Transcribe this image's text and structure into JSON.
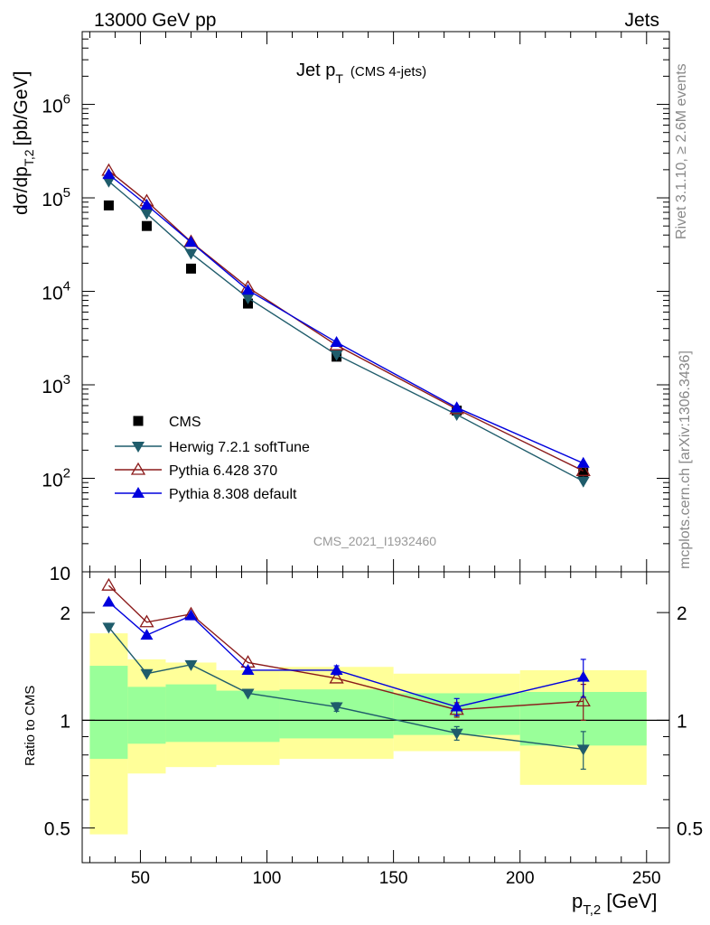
{
  "header": {
    "left": "13000 GeV pp",
    "right": "Jets"
  },
  "side_labels": {
    "rivet": "Rivet 3.1.10, ≥ 2.6M events",
    "mcplots": "mcplots.cern.ch [arXiv:1306.3436]"
  },
  "chart_data": [
    {
      "type": "scatter",
      "title": "Jet p_T (CMS 4-jets)",
      "title_main": "Jet p",
      "title_sub": "T",
      "title_extra": "(CMS 4-jets)",
      "ylabel_main": "dσ/dp",
      "ylabel_sub": "T,2",
      "ylabel_unit": "[pb/GeV]",
      "yscale": "log",
      "ylim": [
        10,
        6000000
      ],
      "xlim": [
        27,
        259
      ],
      "watermark": "CMS_2021_I1932460",
      "legend_position": "bottom-left",
      "y_tick_labels": [
        {
          "base": "10",
          "exp": "6",
          "value": 1000000
        },
        {
          "base": "10",
          "exp": "5",
          "value": 100000
        },
        {
          "base": "10",
          "exp": "4",
          "value": 10000
        },
        {
          "base": "10",
          "exp": "3",
          "value": 1000
        },
        {
          "base": "10",
          "exp": "2",
          "value": 100
        },
        {
          "base": "10",
          "exp": "",
          "value": 10
        }
      ],
      "series": [
        {
          "name": "CMS",
          "marker": "square",
          "color": "#000000",
          "x": [
            37.5,
            52.5,
            70,
            92.5,
            127.5,
            175,
            225
          ],
          "y": [
            83000,
            50000,
            17500,
            7400,
            2000,
            530,
            115
          ]
        },
        {
          "name": "Herwig 7.2.1 softTune",
          "marker": "triangle-down",
          "color": "#1f5c6b",
          "x": [
            37.5,
            52.5,
            70,
            92.5,
            127.5,
            175,
            225
          ],
          "y": [
            150000,
            68000,
            25500,
            8500,
            2100,
            480,
            93
          ],
          "yerr": [
            0,
            0,
            0,
            0,
            0,
            0,
            12
          ]
        },
        {
          "name": "Pythia 6.428 370",
          "marker": "triangle-up-open",
          "color": "#8b1a1a",
          "x": [
            37.5,
            52.5,
            70,
            92.5,
            127.5,
            175,
            225
          ],
          "y": [
            195000,
            92000,
            33800,
            11000,
            2650,
            550,
            120
          ]
        },
        {
          "name": "Pythia 8.308 default",
          "marker": "triangle-up",
          "color": "#0000dd",
          "x": [
            37.5,
            52.5,
            70,
            92.5,
            127.5,
            175,
            225
          ],
          "y": [
            178000,
            84000,
            33500,
            10300,
            2850,
            570,
            145
          ],
          "yerr": [
            0,
            0,
            0,
            0,
            0,
            0,
            14
          ]
        }
      ]
    },
    {
      "type": "line",
      "ylabel": "Ratio to CMS",
      "xlabel_main": "p",
      "xlabel_sub": "T,2",
      "xlabel_unit": "[GeV]",
      "yscale": "log",
      "ylim": [
        0.4,
        2.6
      ],
      "xlim": [
        27,
        259
      ],
      "x_ticks": [
        50,
        100,
        150,
        200,
        250
      ],
      "y_ticks": [
        0.5,
        1,
        2
      ],
      "y_tick_labels": [
        "0.5",
        "1",
        "2"
      ],
      "x_tick_labels": [
        "50",
        "100",
        "150",
        "200",
        "250"
      ],
      "bands": {
        "bin_edges": [
          30,
          45,
          60,
          80,
          105,
          150,
          200,
          250
        ],
        "yellow_low": [
          0.48,
          0.71,
          0.74,
          0.75,
          0.78,
          0.82,
          0.66
        ],
        "yellow_high": [
          1.75,
          1.48,
          1.45,
          1.38,
          1.41,
          1.35,
          1.38
        ],
        "green_low": [
          0.78,
          0.86,
          0.87,
          0.87,
          0.89,
          0.91,
          0.85
        ],
        "green_high": [
          1.42,
          1.24,
          1.26,
          1.21,
          1.22,
          1.19,
          1.2
        ]
      },
      "series": [
        {
          "name": "Herwig 7.2.1 softTune",
          "color": "#1f5c6b",
          "x": [
            37.5,
            52.5,
            70,
            92.5,
            127.5,
            175,
            225
          ],
          "y": [
            1.82,
            1.35,
            1.43,
            1.19,
            1.09,
            0.92,
            0.83
          ],
          "yerr": [
            0,
            0,
            0,
            0,
            0.03,
            0.04,
            0.1
          ]
        },
        {
          "name": "Pythia 6.428 370",
          "color": "#8b1a1a",
          "x": [
            37.5,
            52.5,
            70,
            92.5,
            127.5,
            175,
            225
          ],
          "y": [
            2.38,
            1.88,
            1.98,
            1.45,
            1.31,
            1.07,
            1.13
          ],
          "yerr": [
            0,
            0,
            0,
            0,
            0,
            0.05,
            0.13
          ]
        },
        {
          "name": "Pythia 8.308 default",
          "color": "#0000dd",
          "x": [
            37.5,
            52.5,
            70,
            92.5,
            127.5,
            175,
            225
          ],
          "y": [
            2.14,
            1.73,
            1.96,
            1.38,
            1.38,
            1.09,
            1.32
          ],
          "yerr": [
            0,
            0,
            0,
            0,
            0.04,
            0.06,
            0.16
          ]
        }
      ]
    }
  ]
}
